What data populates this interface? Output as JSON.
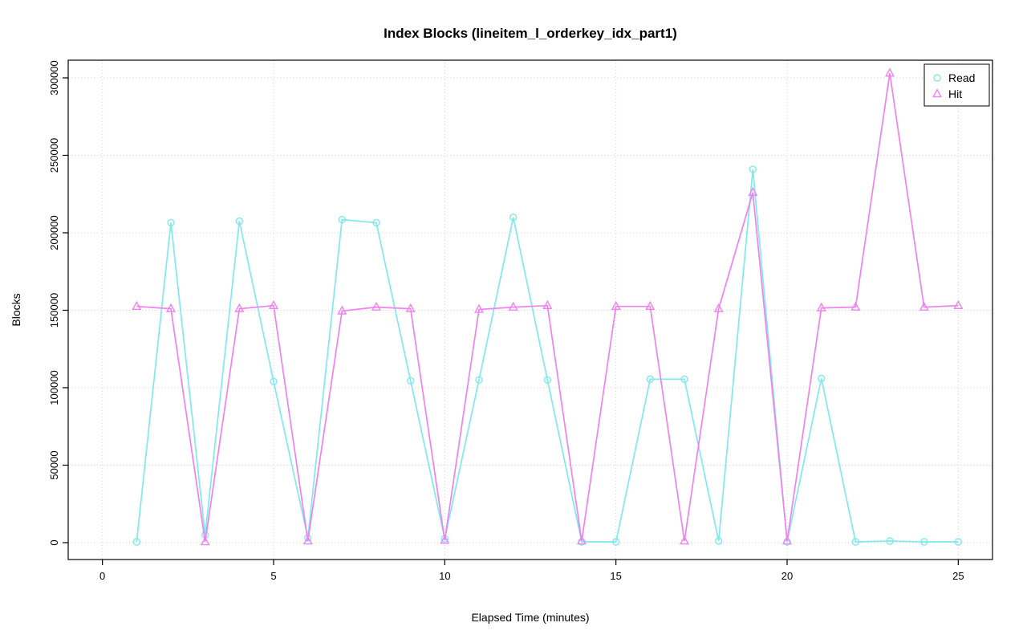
{
  "chart_data": {
    "type": "line",
    "title": "Index Blocks (lineitem_l_orderkey_idx_part1)",
    "xlabel": "Elapsed Time (minutes)",
    "ylabel": "Blocks",
    "x": [
      1,
      2,
      3,
      4,
      5,
      6,
      7,
      8,
      9,
      10,
      11,
      12,
      13,
      14,
      15,
      16,
      17,
      18,
      19,
      20,
      21,
      22,
      23,
      24,
      25
    ],
    "series": [
      {
        "name": "Read",
        "marker": "circle",
        "color": "#80E8EF",
        "values": [
          500,
          206500,
          5000,
          207500,
          104000,
          3000,
          208500,
          206500,
          104500,
          2500,
          105000,
          210000,
          105000,
          500,
          500,
          105500,
          105500,
          1000,
          241000,
          500,
          106000,
          500,
          1000,
          500,
          500
        ]
      },
      {
        "name": "Hit",
        "marker": "triangle",
        "color": "#EE82EE",
        "values": [
          152500,
          151000,
          500,
          151000,
          153000,
          1000,
          149500,
          152000,
          151000,
          1500,
          150500,
          152000,
          153000,
          1000,
          152500,
          152500,
          1000,
          151000,
          226000,
          1000,
          151500,
          152000,
          303000,
          152000,
          153000
        ]
      }
    ],
    "x_ticks": [
      0,
      5,
      10,
      15,
      20,
      25
    ],
    "y_ticks": [
      0,
      50000,
      100000,
      150000,
      200000,
      250000,
      300000
    ],
    "xlim": [
      -1,
      26
    ],
    "ylim": [
      -10900,
      311400
    ],
    "grid": true,
    "grid_color": "#D3D3D3",
    "axis_color": "#000000",
    "background": "#FFFFFF",
    "legend_position": "top-right",
    "legend_labels": [
      "Read",
      "Hit"
    ]
  }
}
